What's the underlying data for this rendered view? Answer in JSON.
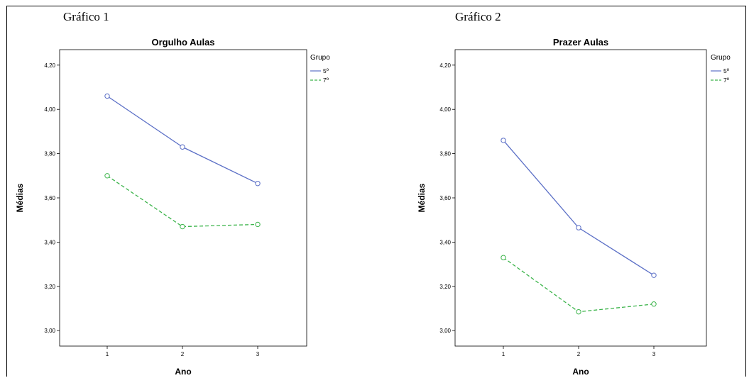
{
  "chart_data": [
    {
      "type": "line",
      "caption": "Gráfico 1",
      "title": "Orgulho Aulas",
      "xlabel": "Ano",
      "ylabel": "Médias",
      "x": [
        "1",
        "2",
        "3"
      ],
      "ylim": [
        2.93,
        4.27
      ],
      "yticks": [
        "3,00",
        "3,20",
        "3,40",
        "3,60",
        "3,80",
        "4,00",
        "4,20"
      ],
      "legend_title": "Grupo",
      "legend_position": "top-right",
      "series": [
        {
          "name": "5º",
          "values": [
            4.06,
            3.83,
            3.665
          ],
          "color": "#5b6fc6",
          "style": "solid"
        },
        {
          "name": "7º",
          "values": [
            3.7,
            3.47,
            3.48
          ],
          "color": "#3cb44b",
          "style": "dashed"
        }
      ]
    },
    {
      "type": "line",
      "caption": "Gráfico 2",
      "title": "Prazer Aulas",
      "xlabel": "Ano",
      "ylabel": "Médias",
      "x": [
        "1",
        "2",
        "3"
      ],
      "ylim": [
        2.93,
        4.27
      ],
      "yticks": [
        "3,00",
        "3,20",
        "3,40",
        "3,60",
        "3,80",
        "4,00",
        "4,20"
      ],
      "legend_title": "Grupo",
      "legend_position": "top-right",
      "series": [
        {
          "name": "5º",
          "values": [
            3.86,
            3.465,
            3.25
          ],
          "color": "#5b6fc6",
          "style": "solid"
        },
        {
          "name": "7º",
          "values": [
            3.33,
            3.085,
            3.12
          ],
          "color": "#3cb44b",
          "style": "dashed"
        }
      ]
    }
  ]
}
